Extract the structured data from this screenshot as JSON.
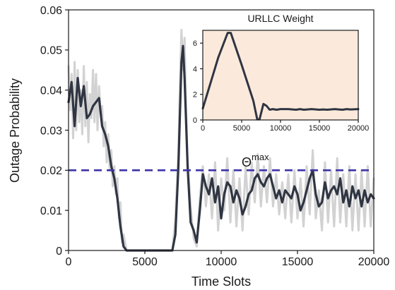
{
  "chart_data": [
    {
      "type": "line",
      "xlabel": "Time Slots",
      "ylabel": "Outage Probability",
      "xlim": [
        0,
        20000
      ],
      "ylim": [
        0,
        0.06
      ],
      "x_ticks": [
        0,
        5000,
        10000,
        15000,
        20000
      ],
      "y_ticks": [
        0,
        0.01,
        0.02,
        0.03,
        0.04,
        0.05,
        0.06
      ],
      "x_tick_labels": [
        "0",
        "5000",
        "10000",
        "15000",
        "20000"
      ],
      "y_tick_labels": [
        "0",
        "0.01",
        "0.02",
        "0.03",
        "0.04",
        "0.05",
        "0.06"
      ],
      "grid": false,
      "series": [
        {
          "style": "smoothed",
          "color": "#2f3542",
          "x": [
            0,
            200,
            400,
            600,
            800,
            1000,
            1200,
            1400,
            1600,
            1800,
            2000,
            2200,
            2400,
            2600,
            2800,
            3000,
            3200,
            3400,
            3600,
            3800,
            4000,
            5000,
            6000,
            6800,
            7000,
            7200,
            7400,
            7500,
            7600,
            7800,
            8000,
            8200,
            8400,
            8600,
            8800,
            9000,
            9200,
            9400,
            9600,
            9800,
            10000,
            10200,
            10400,
            10600,
            10800,
            11000,
            11200,
            11400,
            11600,
            11800,
            12000,
            12200,
            12400,
            12600,
            12800,
            13000,
            13200,
            13400,
            13600,
            13800,
            14000,
            14200,
            14400,
            14600,
            14800,
            15000,
            15200,
            15400,
            15600,
            15800,
            16000,
            16200,
            16400,
            16600,
            16800,
            17000,
            17200,
            17400,
            17600,
            17800,
            18000,
            18200,
            18400,
            18600,
            18800,
            19000,
            19200,
            19400,
            19600,
            19800,
            20000
          ],
          "values": [
            0.037,
            0.042,
            0.031,
            0.043,
            0.036,
            0.041,
            0.033,
            0.034,
            0.036,
            0.037,
            0.038,
            0.031,
            0.029,
            0.026,
            0.021,
            0.018,
            0.013,
            0.006,
            0.001,
            0,
            0,
            0,
            0,
            0,
            0.004,
            0.021,
            0.047,
            0.051,
            0.043,
            0.021,
            0.007,
            0.005,
            0.002,
            0.01,
            0.019,
            0.016,
            0.014,
            0.018,
            0.012,
            0.016,
            0.008,
            0.014,
            0.017,
            0.016,
            0.012,
            0.015,
            0.013,
            0.009,
            0.011,
            0.014,
            0.015,
            0.018,
            0.019,
            0.017,
            0.016,
            0.018,
            0.019,
            0.016,
            0.013,
            0.015,
            0.012,
            0.015,
            0.014,
            0.013,
            0.016,
            0.014,
            0.01,
            0.012,
            0.015,
            0.018,
            0.02,
            0.014,
            0.011,
            0.012,
            0.017,
            0.013,
            0.015,
            0.016,
            0.014,
            0.018,
            0.012,
            0.015,
            0.011,
            0.016,
            0.013,
            0.015,
            0.011,
            0.015,
            0.012,
            0.014,
            0.013
          ]
        },
        {
          "style": "raw",
          "color": "#d2d2d2",
          "x": [
            0,
            100,
            200,
            300,
            400,
            500,
            600,
            700,
            800,
            900,
            1000,
            1100,
            1200,
            1300,
            1400,
            1500,
            1600,
            1700,
            1800,
            1900,
            2000,
            2100,
            2200,
            2300,
            2400,
            2500,
            2600,
            2700,
            2800,
            2900,
            3000,
            3100,
            3200,
            3300,
            3400,
            3500,
            3600,
            3800,
            4000,
            5000,
            6000,
            6800,
            7000,
            7200,
            7300,
            7400,
            7500,
            7600,
            7700,
            7800,
            8000,
            8200,
            8400,
            8600,
            8800,
            9000,
            9200,
            9400,
            9600,
            9800,
            10000,
            10200,
            10400,
            10600,
            10800,
            11000,
            11200,
            11400,
            11600,
            11800,
            12000,
            12200,
            12400,
            12600,
            12800,
            13000,
            13200,
            13400,
            13600,
            13800,
            14000,
            14200,
            14400,
            14600,
            14800,
            15000,
            15200,
            15400,
            15600,
            15800,
            16000,
            16200,
            16400,
            16600,
            16800,
            17000,
            17200,
            17400,
            17600,
            17800,
            18000,
            18200,
            18400,
            18600,
            18800,
            19000,
            19200,
            19400,
            19600,
            19800,
            20000
          ],
          "values": [
            0.046,
            0.035,
            0.044,
            0.028,
            0.047,
            0.03,
            0.045,
            0.032,
            0.04,
            0.029,
            0.046,
            0.031,
            0.042,
            0.027,
            0.039,
            0.033,
            0.045,
            0.032,
            0.044,
            0.03,
            0.041,
            0.034,
            0.036,
            0.026,
            0.032,
            0.022,
            0.029,
            0.02,
            0.025,
            0.016,
            0.021,
            0.014,
            0.018,
            0.008,
            0.012,
            0.002,
            0.004,
            0,
            0,
            0,
            0,
            0,
            0.008,
            0.025,
            0.042,
            0.055,
            0.045,
            0.053,
            0.035,
            0.022,
            0.011,
            0.003,
            0.001,
            0.013,
            0.021,
            0.011,
            0.019,
            0.008,
            0.022,
            0.005,
            0.018,
            0.01,
            0.023,
            0.007,
            0.02,
            0.006,
            0.018,
            0.005,
            0.021,
            0.009,
            0.022,
            0.012,
            0.024,
            0.011,
            0.021,
            0.012,
            0.023,
            0.011,
            0.019,
            0.009,
            0.017,
            0.008,
            0.019,
            0.007,
            0.02,
            0.008,
            0.018,
            0.006,
            0.021,
            0.009,
            0.025,
            0.008,
            0.015,
            0.005,
            0.022,
            0.007,
            0.02,
            0.006,
            0.023,
            0.007,
            0.019,
            0.006,
            0.021,
            0.005,
            0.019,
            0.005,
            0.02,
            0.006,
            0.021,
            0.006,
            0.018
          ]
        }
      ],
      "threshold": {
        "y": 0.02,
        "label_main": "Θ",
        "label_sup": "max",
        "color": "#3d35a8",
        "style": "dashed"
      }
    },
    {
      "type": "line",
      "title": "URLLC Weight",
      "background": "#fbeadb",
      "xlim": [
        0,
        20000
      ],
      "ylim": [
        0,
        7
      ],
      "x_ticks": [
        0,
        5000,
        10000,
        15000,
        20000
      ],
      "y_ticks": [
        0,
        2,
        4,
        6
      ],
      "x_tick_labels": [
        "0",
        "5000",
        "10000",
        "15000",
        "20000"
      ],
      "y_tick_labels": [
        "0",
        "2",
        "4",
        "6"
      ],
      "grid": false,
      "series": [
        {
          "color": "#2f3542",
          "x": [
            0,
            1000,
            2000,
            3200,
            3600,
            5000,
            6500,
            7000,
            7300,
            7800,
            8200,
            8600,
            9000,
            9500,
            10000,
            11000,
            12000,
            12500,
            13000,
            14000,
            15000,
            15500,
            16000,
            17000,
            17500,
            18000,
            18500,
            19000,
            20000
          ],
          "values": [
            0.9,
            2.9,
            4.9,
            6.8,
            6.8,
            4.3,
            1.5,
            0.05,
            0.05,
            1.25,
            1.1,
            0.8,
            0.85,
            0.8,
            0.85,
            0.85,
            0.8,
            0.85,
            0.8,
            0.85,
            0.8,
            0.82,
            0.8,
            0.85,
            0.82,
            0.8,
            0.85,
            0.82,
            0.85
          ]
        }
      ]
    }
  ]
}
